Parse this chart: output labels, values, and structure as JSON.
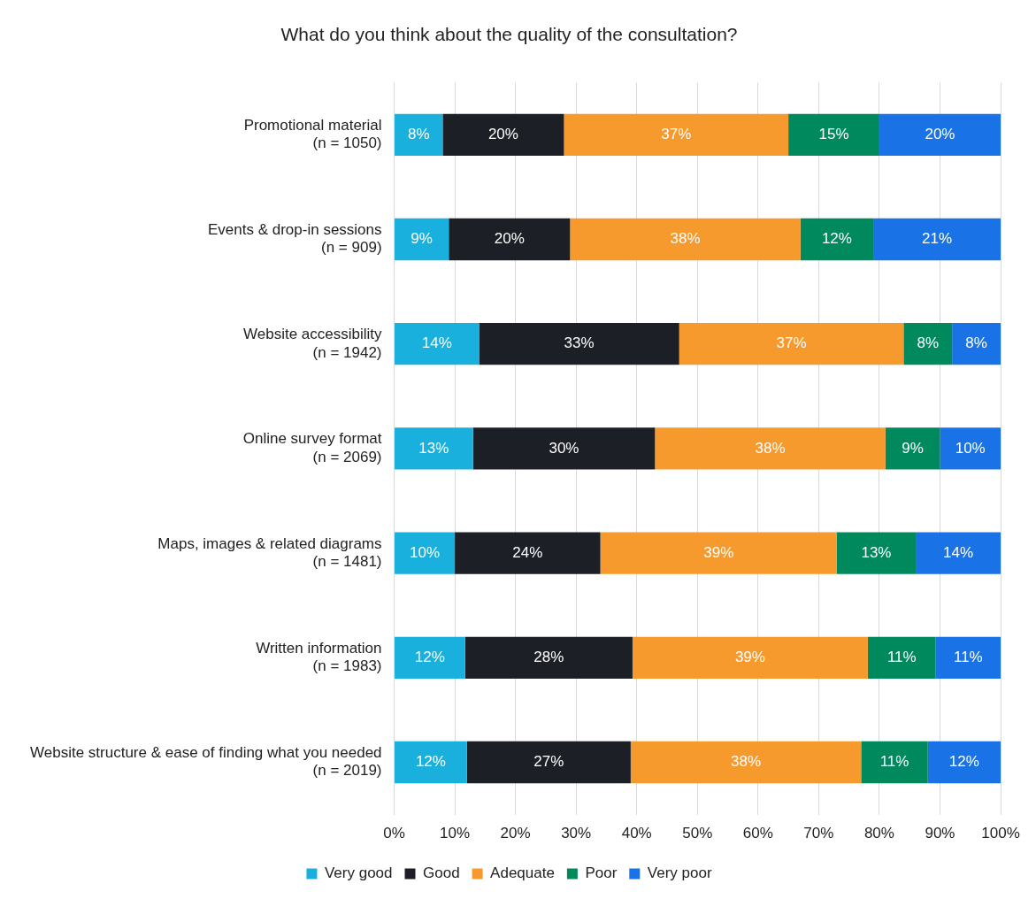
{
  "chart_data": {
    "type": "bar",
    "orientation": "horizontal",
    "stacked": true,
    "title": "What do you think about the quality of the consultation?",
    "categories": [
      "Promotional material\n(n = 1050)",
      "Events & drop-in sessions\n(n = 909)",
      "Website accessibility\n(n = 1942)",
      "Online survey format\n(n = 2069)",
      "Maps, images & related diagrams\n(n = 1481)",
      "Written information\n(n = 1983)",
      "Website structure & ease of finding what you needed\n(n = 2019)"
    ],
    "series": [
      {
        "name": "Very good",
        "color": "#1ab0de",
        "values": [
          8,
          9,
          14,
          13,
          10,
          11.7,
          12
        ],
        "value_labels": [
          "8%",
          "9%",
          "14%",
          "13%",
          "10%",
          "12%",
          "12%"
        ]
      },
      {
        "name": "Good",
        "color": "#1c1f26",
        "values": [
          20,
          20,
          33,
          30,
          24,
          27.6,
          27
        ],
        "value_labels": [
          "20%",
          "20%",
          "33%",
          "30%",
          "24%",
          "28%",
          "27%"
        ]
      },
      {
        "name": "Adequate",
        "color": "#f79a2e",
        "values": [
          37,
          38,
          37,
          38,
          39,
          38.8,
          38
        ],
        "value_labels": [
          "37%",
          "38%",
          "37%",
          "38%",
          "39%",
          "39%",
          "38%"
        ]
      },
      {
        "name": "Poor",
        "color": "#00895c",
        "values": [
          15,
          12,
          8,
          9,
          13,
          11.2,
          11
        ],
        "value_labels": [
          "15%",
          "12%",
          "8%",
          "9%",
          "13%",
          "11%",
          "11%"
        ]
      },
      {
        "name": "Very poor",
        "color": "#1a73e6",
        "values": [
          20,
          21,
          8,
          10,
          14,
          10.7,
          12
        ],
        "value_labels": [
          "20%",
          "21%",
          "8%",
          "10%",
          "14%",
          "11%",
          "12%"
        ]
      }
    ],
    "xlim": [
      0,
      100
    ],
    "xticks": [
      {
        "value": 0,
        "label": "0%"
      },
      {
        "value": 10,
        "label": "10%"
      },
      {
        "value": 20,
        "label": "20%"
      },
      {
        "value": 30,
        "label": "30%"
      },
      {
        "value": 40,
        "label": "40%"
      },
      {
        "value": 50,
        "label": "50%"
      },
      {
        "value": 60,
        "label": "60%"
      },
      {
        "value": 70,
        "label": "70%"
      },
      {
        "value": 80,
        "label": "80%"
      },
      {
        "value": 90,
        "label": "90%"
      },
      {
        "value": 100,
        "label": "100%"
      }
    ],
    "grid": "x",
    "legend": "bottom"
  }
}
